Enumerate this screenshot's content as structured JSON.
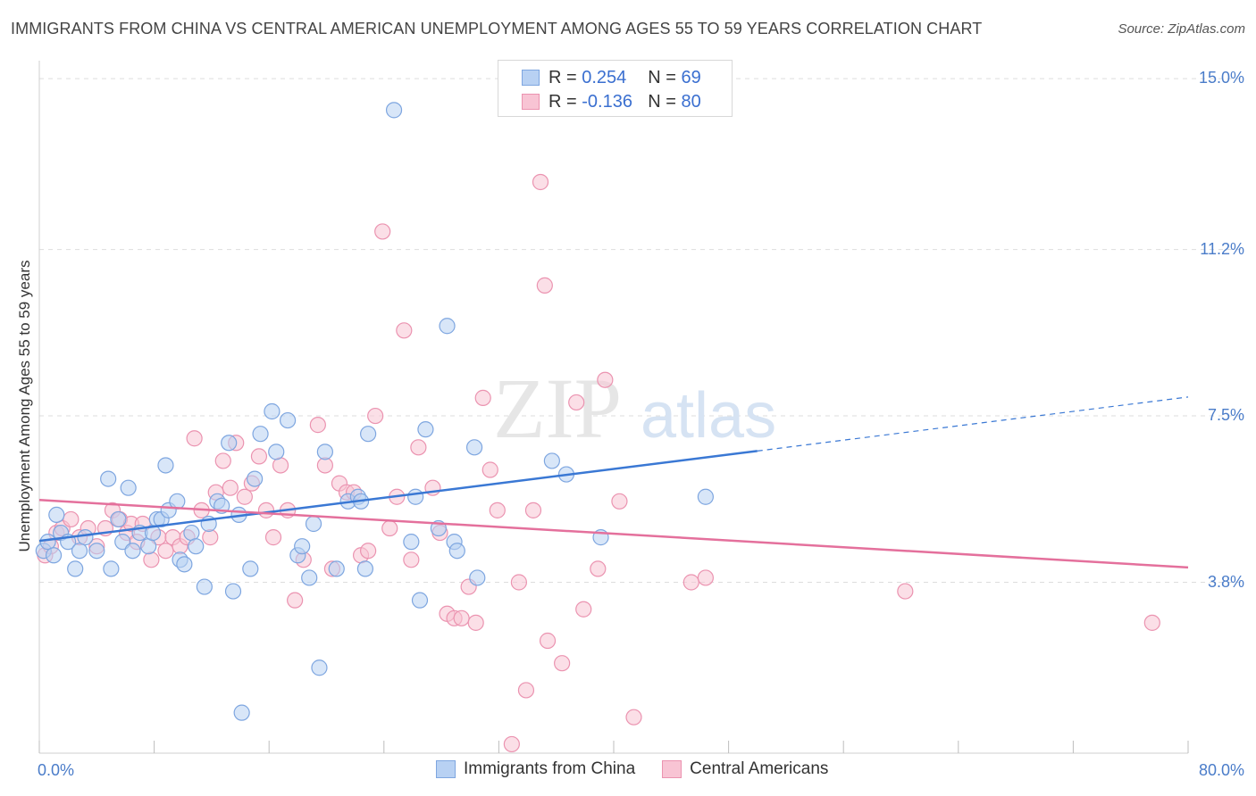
{
  "title": "IMMIGRANTS FROM CHINA VS CENTRAL AMERICAN UNEMPLOYMENT AMONG AGES 55 TO 59 YEARS CORRELATION CHART",
  "source": "Source: ZipAtlas.com",
  "watermark": {
    "zip": "ZIP",
    "atlas": "atlas"
  },
  "legend": {
    "r_label": "R =",
    "n_label": "N =",
    "china": {
      "r": "0.254",
      "n": "69"
    },
    "central": {
      "r": "-0.136",
      "n": "80"
    }
  },
  "colors": {
    "china_fill": "#b8d1f3",
    "china_stroke": "#7ea6e0",
    "china_line": "#3a78d4",
    "central_fill": "#f8c4d4",
    "central_stroke": "#eb93b0",
    "central_line": "#e4709c",
    "tick_text": "#4a7cc9",
    "grid": "#dddddd"
  },
  "chart_data": {
    "type": "scatter",
    "title": "IMMIGRANTS FROM CHINA VS CENTRAL AMERICAN UNEMPLOYMENT AMONG AGES 55 TO 59 YEARS CORRELATION CHART",
    "xlabel": "",
    "ylabel": "Unemployment Among Ages 55 to 59 years",
    "xlim": [
      0,
      80
    ],
    "ylim": [
      0,
      15.2
    ],
    "x_tick_labels": [
      "0.0%",
      "80.0%"
    ],
    "y_ticks": [
      3.8,
      7.5,
      11.2,
      15.0
    ],
    "y_tick_labels": [
      "3.8%",
      "7.5%",
      "11.2%",
      "15.0%"
    ],
    "grid": true,
    "legend_position": "top-center",
    "series": [
      {
        "name": "Immigrants from China",
        "r": 0.254,
        "n": 69,
        "trend": {
          "x0": 0,
          "y0": 4.72,
          "x1": 50,
          "y1": 6.72,
          "dashed_to_x": 80,
          "dashed_to_y": 7.92
        },
        "points": [
          [
            0.3,
            4.5
          ],
          [
            0.6,
            4.7
          ],
          [
            1.0,
            4.4
          ],
          [
            1.2,
            5.3
          ],
          [
            1.5,
            4.9
          ],
          [
            2.0,
            4.7
          ],
          [
            2.5,
            4.1
          ],
          [
            2.8,
            4.5
          ],
          [
            3.2,
            4.8
          ],
          [
            4.0,
            4.5
          ],
          [
            4.8,
            6.1
          ],
          [
            5.0,
            4.1
          ],
          [
            5.5,
            5.2
          ],
          [
            5.8,
            4.7
          ],
          [
            6.2,
            5.9
          ],
          [
            6.5,
            4.5
          ],
          [
            7.0,
            4.9
          ],
          [
            7.6,
            4.6
          ],
          [
            7.9,
            4.9
          ],
          [
            8.2,
            5.2
          ],
          [
            8.5,
            5.2
          ],
          [
            8.8,
            6.4
          ],
          [
            9.0,
            5.4
          ],
          [
            9.6,
            5.6
          ],
          [
            9.8,
            4.3
          ],
          [
            10.1,
            4.2
          ],
          [
            10.6,
            4.9
          ],
          [
            10.9,
            4.6
          ],
          [
            11.5,
            3.7
          ],
          [
            11.8,
            5.1
          ],
          [
            12.4,
            5.6
          ],
          [
            12.7,
            5.5
          ],
          [
            13.2,
            6.9
          ],
          [
            13.5,
            3.6
          ],
          [
            13.9,
            5.3
          ],
          [
            14.1,
            0.9
          ],
          [
            14.7,
            4.1
          ],
          [
            15.0,
            6.1
          ],
          [
            15.4,
            7.1
          ],
          [
            16.2,
            7.6
          ],
          [
            16.5,
            6.7
          ],
          [
            17.3,
            7.4
          ],
          [
            18.0,
            4.4
          ],
          [
            18.3,
            4.6
          ],
          [
            18.8,
            3.9
          ],
          [
            19.1,
            5.1
          ],
          [
            19.5,
            1.9
          ],
          [
            19.9,
            6.7
          ],
          [
            20.7,
            4.1
          ],
          [
            21.5,
            5.6
          ],
          [
            22.2,
            5.7
          ],
          [
            22.4,
            5.6
          ],
          [
            22.7,
            4.1
          ],
          [
            22.9,
            7.1
          ],
          [
            24.7,
            14.3
          ],
          [
            25.9,
            4.7
          ],
          [
            26.2,
            5.7
          ],
          [
            26.5,
            3.4
          ],
          [
            26.9,
            7.2
          ],
          [
            27.8,
            5.0
          ],
          [
            28.4,
            9.5
          ],
          [
            28.9,
            4.7
          ],
          [
            29.1,
            4.5
          ],
          [
            30.3,
            6.8
          ],
          [
            30.5,
            3.9
          ],
          [
            35.7,
            6.5
          ],
          [
            36.7,
            6.2
          ],
          [
            39.1,
            4.8
          ],
          [
            46.4,
            5.7
          ]
        ]
      },
      {
        "name": "Central Americans",
        "r": -0.136,
        "n": 80,
        "trend": {
          "x0": 0,
          "y0": 5.63,
          "x1": 80,
          "y1": 4.13
        },
        "points": [
          [
            0.4,
            4.4
          ],
          [
            0.8,
            4.6
          ],
          [
            1.2,
            4.9
          ],
          [
            1.6,
            5.0
          ],
          [
            2.2,
            5.2
          ],
          [
            2.8,
            4.8
          ],
          [
            3.4,
            5.0
          ],
          [
            4.0,
            4.6
          ],
          [
            4.6,
            5.0
          ],
          [
            5.1,
            5.4
          ],
          [
            5.6,
            5.2
          ],
          [
            6.1,
            4.9
          ],
          [
            6.4,
            5.1
          ],
          [
            6.8,
            4.7
          ],
          [
            7.2,
            5.1
          ],
          [
            7.8,
            4.3
          ],
          [
            8.3,
            4.8
          ],
          [
            8.8,
            4.5
          ],
          [
            9.3,
            4.8
          ],
          [
            9.8,
            4.6
          ],
          [
            10.3,
            4.8
          ],
          [
            10.8,
            7.0
          ],
          [
            11.3,
            5.4
          ],
          [
            11.9,
            4.8
          ],
          [
            12.3,
            5.8
          ],
          [
            12.8,
            6.5
          ],
          [
            13.3,
            5.9
          ],
          [
            13.7,
            6.9
          ],
          [
            14.3,
            5.7
          ],
          [
            14.8,
            6.0
          ],
          [
            15.3,
            6.6
          ],
          [
            15.8,
            5.4
          ],
          [
            16.3,
            4.8
          ],
          [
            16.8,
            6.4
          ],
          [
            17.3,
            5.4
          ],
          [
            17.8,
            3.4
          ],
          [
            18.4,
            4.3
          ],
          [
            19.4,
            7.3
          ],
          [
            19.9,
            6.4
          ],
          [
            20.4,
            4.1
          ],
          [
            20.9,
            6.0
          ],
          [
            21.4,
            5.8
          ],
          [
            21.9,
            5.8
          ],
          [
            22.4,
            4.4
          ],
          [
            22.9,
            4.5
          ],
          [
            23.4,
            7.5
          ],
          [
            23.9,
            11.6
          ],
          [
            24.4,
            5.0
          ],
          [
            24.9,
            5.7
          ],
          [
            25.4,
            9.4
          ],
          [
            25.9,
            4.3
          ],
          [
            26.4,
            6.8
          ],
          [
            27.4,
            5.9
          ],
          [
            27.9,
            4.9
          ],
          [
            28.4,
            3.1
          ],
          [
            28.9,
            3.0
          ],
          [
            29.4,
            3.0
          ],
          [
            29.9,
            3.7
          ],
          [
            30.4,
            2.9
          ],
          [
            30.9,
            7.9
          ],
          [
            31.4,
            6.3
          ],
          [
            31.9,
            5.4
          ],
          [
            32.9,
            0.2
          ],
          [
            33.4,
            3.8
          ],
          [
            33.9,
            1.4
          ],
          [
            34.4,
            5.4
          ],
          [
            34.9,
            12.7
          ],
          [
            35.2,
            10.4
          ],
          [
            35.4,
            2.5
          ],
          [
            36.4,
            2.0
          ],
          [
            37.4,
            7.8
          ],
          [
            37.9,
            3.2
          ],
          [
            38.9,
            4.1
          ],
          [
            39.4,
            8.3
          ],
          [
            40.4,
            5.6
          ],
          [
            41.4,
            0.8
          ],
          [
            45.4,
            3.8
          ],
          [
            46.4,
            3.9
          ],
          [
            60.3,
            3.6
          ],
          [
            77.5,
            2.9
          ]
        ]
      }
    ]
  }
}
